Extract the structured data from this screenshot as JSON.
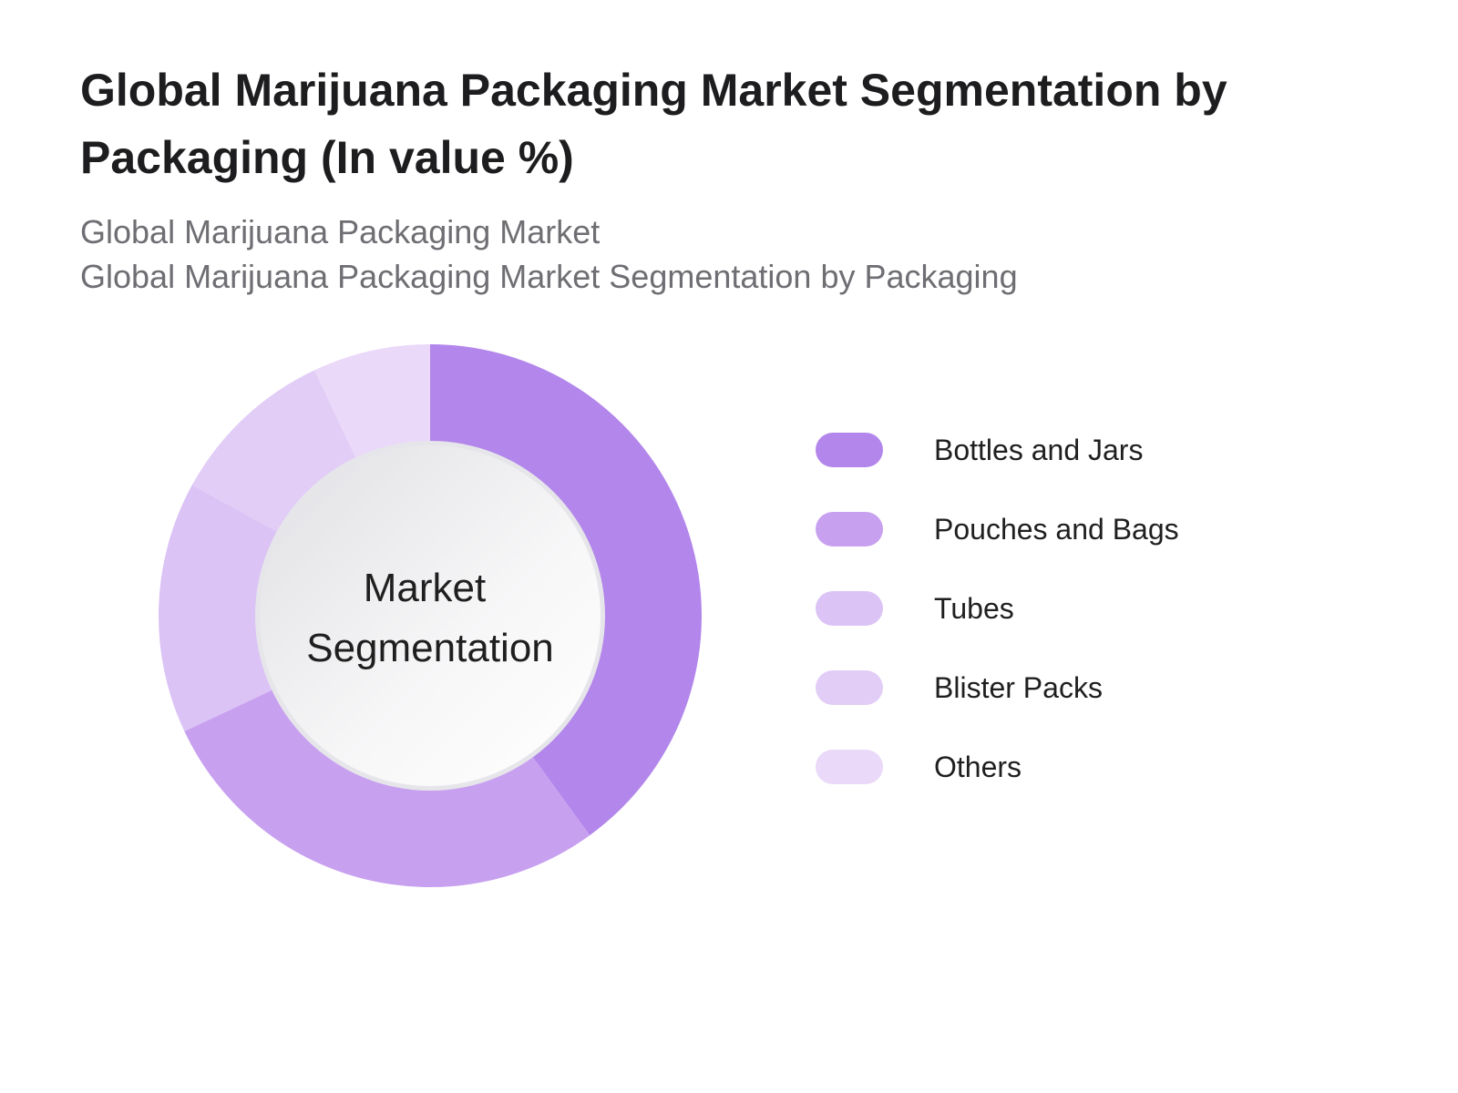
{
  "title": "Global Marijuana Packaging Market Segmentation by Packaging (In value %)",
  "subtitles": [
    "Global Marijuana Packaging Market",
    "Global Marijuana Packaging Market Segmentation by Packaging"
  ],
  "center_label": [
    "Market",
    "Segmentation"
  ],
  "chart_data": {
    "type": "pie",
    "title": "Global Marijuana Packaging Market Segmentation by Packaging (In value %)",
    "categories": [
      "Bottles and Jars",
      "Pouches and Bags",
      "Tubes",
      "Blister Packs",
      "Others"
    ],
    "values": [
      40,
      28,
      15,
      10,
      7
    ],
    "colors": [
      "#b386eb",
      "#c8a0f0",
      "#dbc3f5",
      "#e2cdf7",
      "#ead9f9"
    ],
    "legend_position": "right",
    "donut": true
  }
}
